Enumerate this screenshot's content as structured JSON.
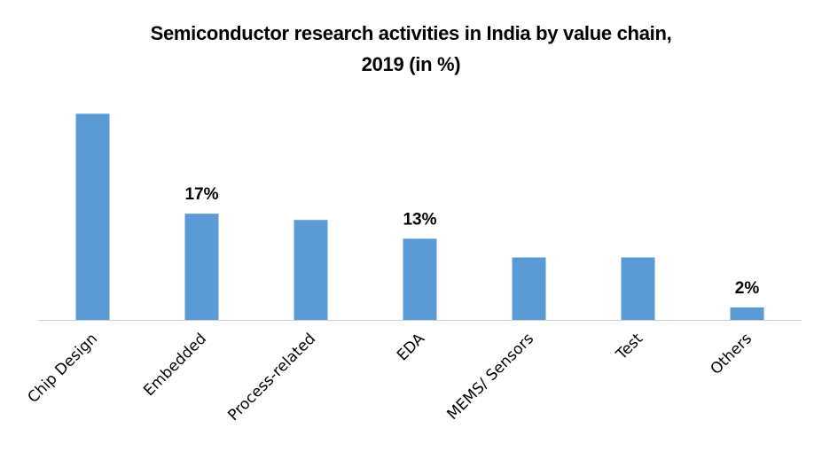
{
  "chart_data": {
    "type": "bar",
    "title": "Semiconductor research activities in India by value chain, 2019 (in %)",
    "title_lines": [
      "Semiconductor research activities in India by value chain,",
      "2019 (in %)"
    ],
    "xlabel": "",
    "ylabel": "",
    "ylim": [
      0,
      35
    ],
    "grid": false,
    "legend": "none",
    "bar_color": "#5b9bd5",
    "categories": [
      "Chip Design",
      "Embedded",
      "Process-related",
      "EDA",
      "MEMS/ Sensors",
      "Test",
      "Others"
    ],
    "values": [
      33,
      17,
      16,
      13,
      10,
      10,
      2
    ],
    "data_labels": [
      null,
      "17%",
      null,
      "13%",
      null,
      null,
      "2%"
    ]
  }
}
